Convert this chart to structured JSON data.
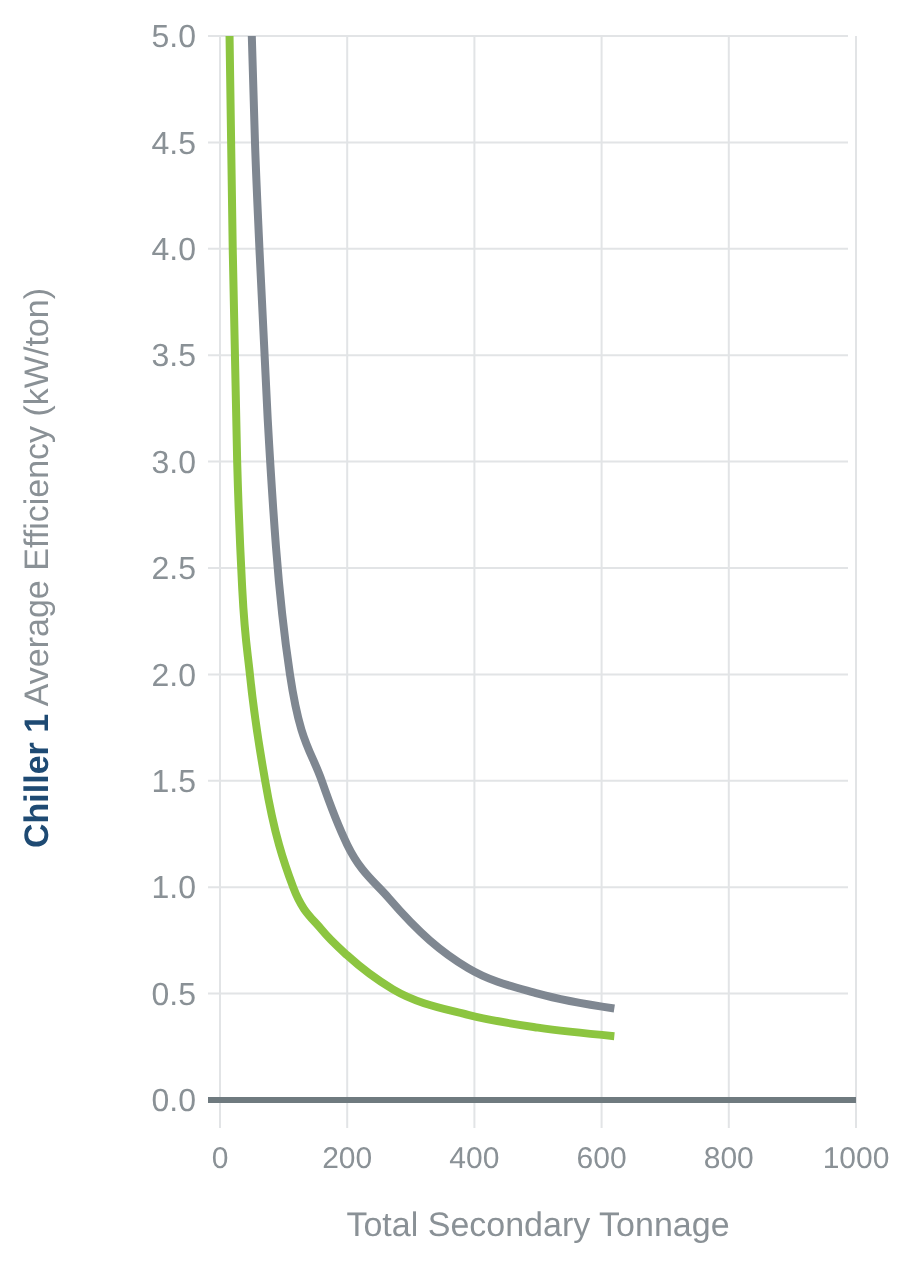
{
  "chart_data": {
    "type": "line",
    "xlabel": "Total Secondary Tonnage",
    "ylabel": "Chiller 1 Average Efficiency (kW/ton)",
    "xlim": [
      0,
      1000
    ],
    "xticks": [
      0,
      200,
      400,
      600,
      800,
      1000
    ],
    "ylim": [
      0,
      5
    ],
    "yticks": [
      {
        "value": 0,
        "label": "0.0"
      },
      {
        "value": 0.5,
        "label": "0.5"
      },
      {
        "value": 1,
        "label": "1.0"
      },
      {
        "value": 1.5,
        "label": "1.5"
      },
      {
        "value": 2,
        "label": "2.0"
      },
      {
        "value": 2.5,
        "label": "2.5"
      },
      {
        "value": 3,
        "label": "3.0"
      },
      {
        "value": 3.5,
        "label": "3.5"
      },
      {
        "value": 4,
        "label": "4.0"
      },
      {
        "value": 4.5,
        "label": "4.5"
      },
      {
        "value": 5,
        "label": "5.0"
      }
    ],
    "grid": true,
    "marker": "none",
    "line_style": "solid",
    "series": [
      {
        "color": "#7f8791",
        "x": [
          50,
          55,
          62,
          75,
          88,
          110,
          160,
          200,
          265,
          330,
          390,
          500,
          620
        ],
        "values": [
          5,
          4.5,
          4,
          3.2,
          2.6,
          2,
          1.5,
          1.2,
          0.95,
          0.75,
          0.62,
          0.5,
          0.43
        ]
      },
      {
        "color": "#8cc540",
        "x": [
          15,
          20,
          27,
          35,
          47,
          71,
          115,
          160,
          200,
          272,
          390,
          500,
          620
        ],
        "values": [
          5,
          4,
          3,
          2.4,
          2,
          1.5,
          1,
          0.8,
          0.68,
          0.52,
          0.4,
          0.34,
          0.3
        ]
      }
    ]
  }
}
